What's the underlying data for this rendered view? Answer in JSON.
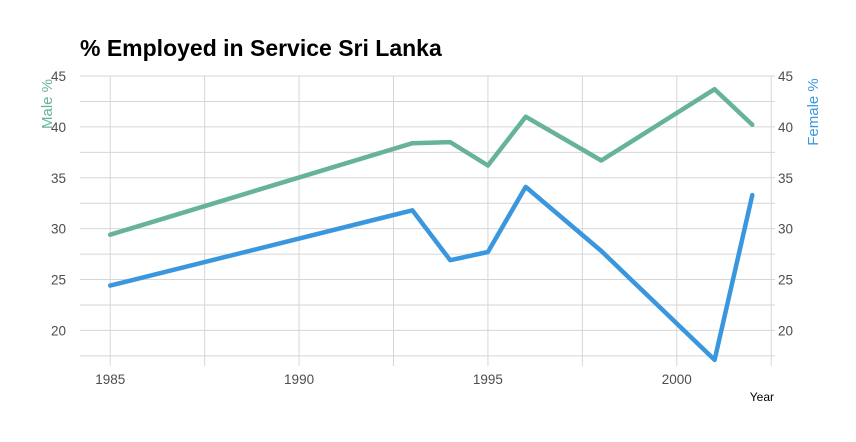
{
  "chart_data": {
    "type": "line",
    "title": "% Employed in Service Sri Lanka",
    "xlabel": "Year",
    "ylabel_left": "Male %",
    "ylabel_right": "Female %",
    "xlim": [
      1984.2,
      2002.6
    ],
    "ylim": [
      16.5,
      45
    ],
    "x_ticks": [
      1985,
      1990,
      1995,
      2000
    ],
    "y_ticks": [
      20,
      25,
      30,
      35,
      40,
      45
    ],
    "grid": true,
    "series": [
      {
        "name": "Male %",
        "color": "#66b39a",
        "x": [
          1985,
          1993,
          1994,
          1995,
          1996,
          1998,
          2001,
          2002
        ],
        "values": [
          29.4,
          38.4,
          38.5,
          36.2,
          41.0,
          36.7,
          43.7,
          40.2
        ]
      },
      {
        "name": "Female %",
        "color": "#3a97de",
        "x": [
          1985,
          1993,
          1994,
          1995,
          1996,
          1998,
          2001,
          2002
        ],
        "values": [
          24.4,
          31.8,
          26.9,
          27.7,
          34.1,
          27.8,
          17.1,
          33.3
        ]
      }
    ]
  }
}
